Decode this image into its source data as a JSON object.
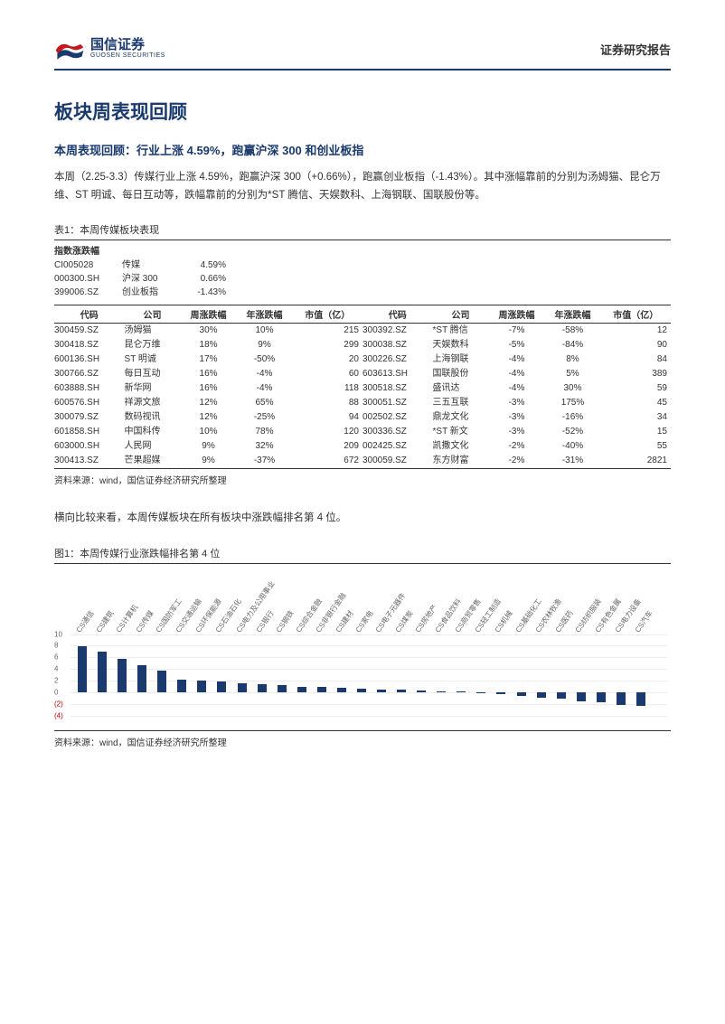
{
  "header": {
    "logo_cn": "国信证券",
    "logo_en": "GUOSEN SECURITIES",
    "right": "证券研究报告"
  },
  "title": "板块周表现回顾",
  "subtitle": "本周表现回顾：行业上涨 4.59%，跑赢沪深 300 和创业板指",
  "para": "本周（2.25-3.3）传媒行业上涨 4.59%，跑赢沪深 300（+0.66%），跑赢创业板指（-1.43%）。其中涨幅靠前的分别为汤姆猫、昆仑万维、ST 明诚、每日互动等，跌幅靠前的分别为*ST 腾信、天娱数科、上海钢联、国联股份等。",
  "table1": {
    "caption": "表1：本周传媒板块表现",
    "idx_heading": "指数涨跌幅",
    "indices": [
      {
        "code": "CI005028",
        "name": "传媒",
        "val": "4.59%"
      },
      {
        "code": "000300.SH",
        "name": "沪深 300",
        "val": "0.66%"
      },
      {
        "code": "399006.SZ",
        "name": "创业板指",
        "val": "-1.43%"
      }
    ],
    "cols": [
      "代码",
      "公司",
      "周涨跌幅",
      "年涨跌幅",
      "市值（亿）",
      "代码",
      "公司",
      "周涨跌幅",
      "年涨跌幅",
      "市值（亿）"
    ],
    "rows": [
      [
        "300459.SZ",
        "汤姆猫",
        "30%",
        "10%",
        "215",
        "300392.SZ",
        "*ST 腾信",
        "-7%",
        "-58%",
        "12"
      ],
      [
        "300418.SZ",
        "昆仑万维",
        "18%",
        "9%",
        "299",
        "300038.SZ",
        "天娱数科",
        "-5%",
        "-84%",
        "90"
      ],
      [
        "600136.SH",
        "ST 明诚",
        "17%",
        "-50%",
        "20",
        "300226.SZ",
        "上海钢联",
        "-4%",
        "8%",
        "84"
      ],
      [
        "300766.SZ",
        "每日互动",
        "16%",
        "-4%",
        "60",
        "603613.SH",
        "国联股份",
        "-4%",
        "5%",
        "389"
      ],
      [
        "603888.SH",
        "新华网",
        "16%",
        "-4%",
        "118",
        "300518.SZ",
        "盛讯达",
        "-4%",
        "30%",
        "59"
      ],
      [
        "600576.SH",
        "祥源文旅",
        "12%",
        "65%",
        "88",
        "300051.SZ",
        "三五互联",
        "-3%",
        "175%",
        "45"
      ],
      [
        "300079.SZ",
        "数码视讯",
        "12%",
        "-25%",
        "94",
        "002502.SZ",
        "鼎龙文化",
        "-3%",
        "-16%",
        "34"
      ],
      [
        "601858.SH",
        "中国科传",
        "10%",
        "78%",
        "120",
        "300336.SZ",
        "*ST 新文",
        "-3%",
        "-52%",
        "15"
      ],
      [
        "603000.SH",
        "人民网",
        "9%",
        "32%",
        "209",
        "002425.SZ",
        "凯撒文化",
        "-2%",
        "-40%",
        "55"
      ],
      [
        "300413.SZ",
        "芒果超媒",
        "9%",
        "-37%",
        "672",
        "300059.SZ",
        "东方财富",
        "-2%",
        "-31%",
        "2821"
      ]
    ],
    "source": "资料来源：wind，国信证券经济研究所整理"
  },
  "para2": "横向比较来看，本周传媒板块在所有板块中涨跌幅排名第 4 位。",
  "fig1": {
    "caption": "图1：本周传媒行业涨跌幅排名第 4 位",
    "ylim": [
      -4,
      10
    ],
    "yticks": [
      {
        "v": 10,
        "label": "10",
        "neg": false
      },
      {
        "v": 8,
        "label": "8",
        "neg": false
      },
      {
        "v": 6,
        "label": "6",
        "neg": false
      },
      {
        "v": 4,
        "label": "4",
        "neg": false
      },
      {
        "v": 2,
        "label": "2",
        "neg": false
      },
      {
        "v": 0,
        "label": "0",
        "neg": false
      },
      {
        "v": -2,
        "label": "(2)",
        "neg": true
      },
      {
        "v": -4,
        "label": "(4)",
        "neg": true
      }
    ],
    "bar_color": "#1a3a6e",
    "background_color": "#ffffff",
    "categories": [
      "CS通信",
      "CS建筑",
      "CS计算机",
      "CS传媒",
      "CS国防军工",
      "CS交通运输",
      "CS环保能源",
      "CS石油石化",
      "CS电力及公用事业",
      "CS银行",
      "CS钢铁",
      "CS综合金融",
      "CS非银行金融",
      "CS建材",
      "CS家电",
      "CS电子元器件",
      "CS煤炭",
      "CS房地产",
      "CS食品饮料",
      "CS商贸零售",
      "CS轻工制造",
      "CS机械",
      "CS基础化工",
      "CS农林牧渔",
      "CS医药",
      "CS纺织服装",
      "CS有色金属",
      "CS电力设备",
      "CS汽车"
    ],
    "values": [
      8.0,
      7.0,
      5.8,
      4.6,
      3.8,
      2.2,
      2.0,
      1.8,
      1.6,
      1.4,
      1.2,
      1.0,
      0.9,
      0.8,
      0.6,
      0.5,
      0.4,
      0.3,
      0.2,
      0.1,
      -0.2,
      -0.4,
      -0.6,
      -0.9,
      -1.1,
      -1.5,
      -1.8,
      -2.2,
      -2.4
    ],
    "source": "资料来源：wind，国信证券经济研究所整理"
  }
}
